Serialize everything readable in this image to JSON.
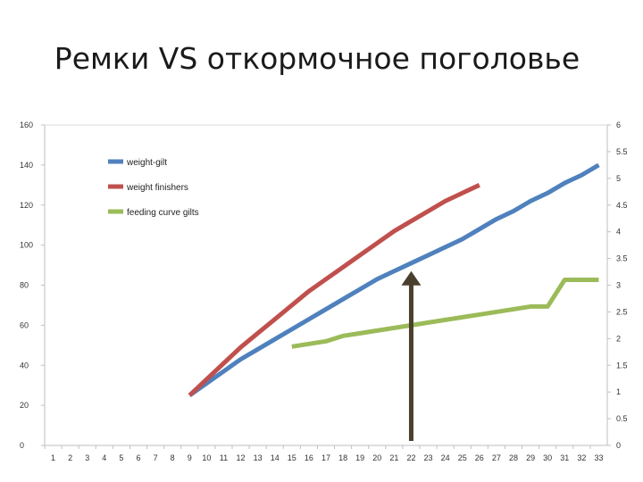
{
  "title": "Ремки VS откормочное поголовье",
  "chart_data": {
    "type": "line",
    "x": [
      1,
      2,
      3,
      4,
      5,
      6,
      7,
      8,
      9,
      10,
      11,
      12,
      13,
      14,
      15,
      16,
      17,
      18,
      19,
      20,
      21,
      22,
      23,
      24,
      25,
      26,
      27,
      28,
      29,
      30,
      31,
      32,
      33
    ],
    "ylim_left": [
      0,
      160
    ],
    "ylim_right": [
      0,
      6
    ],
    "yticks_left": [
      0,
      20,
      40,
      60,
      80,
      100,
      120,
      140,
      160
    ],
    "yticks_right": [
      0,
      0.5,
      1,
      1.5,
      2,
      2.5,
      3,
      3.5,
      4,
      4.5,
      5,
      5.5,
      6
    ],
    "grid": false,
    "legend_position": "top-left",
    "series": [
      {
        "name": "weight-gilt",
        "color": "#4f81bd",
        "axis": "left",
        "x": [
          9,
          10,
          11,
          12,
          13,
          14,
          15,
          16,
          17,
          18,
          19,
          20,
          21,
          22,
          23,
          24,
          25,
          26,
          27,
          28,
          29,
          30,
          31,
          32,
          33
        ],
        "values": [
          25,
          31,
          37,
          43,
          48,
          53,
          58,
          63,
          68,
          73,
          78,
          83,
          87,
          91,
          95,
          99,
          103,
          108,
          113,
          117,
          122,
          126,
          131,
          135,
          140
        ]
      },
      {
        "name": "weight finishers",
        "color": "#c0504d",
        "axis": "left",
        "x": [
          9,
          10,
          11,
          12,
          13,
          14,
          15,
          16,
          17,
          18,
          19,
          20,
          21,
          22,
          23,
          24,
          25,
          26
        ],
        "values": [
          25,
          33,
          41,
          49,
          56,
          63,
          70,
          77,
          83,
          89,
          95,
          101,
          107,
          112,
          117,
          122,
          126,
          130
        ]
      },
      {
        "name": "feeding curve gilts",
        "color": "#9bbb59",
        "axis": "right",
        "x": [
          15,
          16,
          17,
          18,
          19,
          20,
          21,
          22,
          23,
          24,
          25,
          26,
          27,
          28,
          29,
          30,
          31,
          32,
          33
        ],
        "values": [
          1.85,
          1.9,
          1.95,
          2.05,
          2.1,
          2.15,
          2.2,
          2.25,
          2.3,
          2.35,
          2.4,
          2.45,
          2.5,
          2.55,
          2.6,
          2.6,
          3.1,
          3.1,
          3.1
        ]
      }
    ],
    "annotation": {
      "type": "arrow",
      "x": 22,
      "y_from": 0,
      "y_to": 87,
      "color": "#4a3f2c"
    }
  }
}
